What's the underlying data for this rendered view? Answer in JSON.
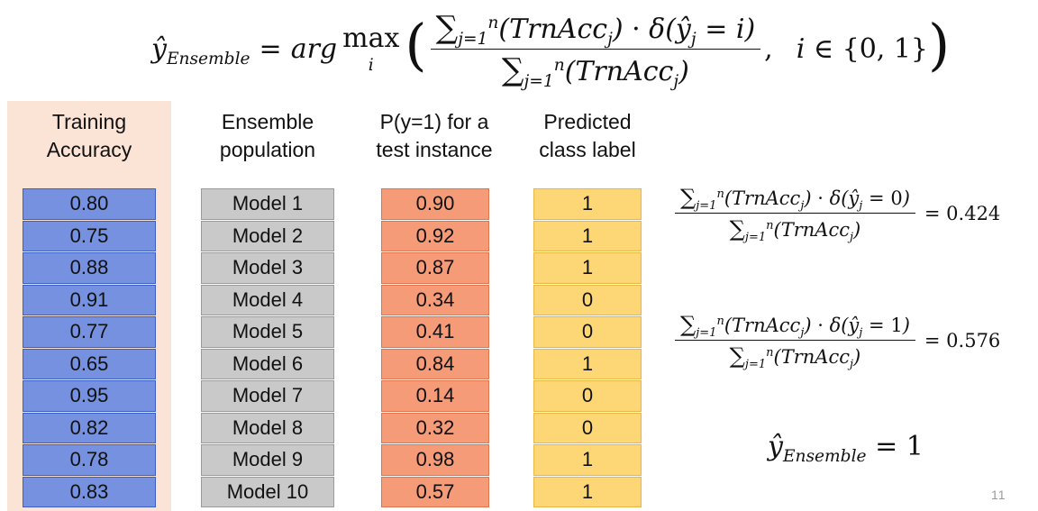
{
  "headers": {
    "accuracy": [
      "Training",
      "Accuracy"
    ],
    "population": [
      "Ensemble",
      "population"
    ],
    "probability": [
      "P(y=1) for a",
      "test instance"
    ],
    "predicted": [
      "Predicted",
      "class label"
    ]
  },
  "rows": [
    {
      "accuracy": "0.80",
      "model": "Model 1",
      "prob": "0.90",
      "pred": "1"
    },
    {
      "accuracy": "0.75",
      "model": "Model 2",
      "prob": "0.92",
      "pred": "1"
    },
    {
      "accuracy": "0.88",
      "model": "Model 3",
      "prob": "0.87",
      "pred": "1"
    },
    {
      "accuracy": "0.91",
      "model": "Model 4",
      "prob": "0.34",
      "pred": "0"
    },
    {
      "accuracy": "0.77",
      "model": "Model 5",
      "prob": "0.41",
      "pred": "0"
    },
    {
      "accuracy": "0.65",
      "model": "Model 6",
      "prob": "0.84",
      "pred": "1"
    },
    {
      "accuracy": "0.95",
      "model": "Model 7",
      "prob": "0.14",
      "pred": "0"
    },
    {
      "accuracy": "0.82",
      "model": "Model 8",
      "prob": "0.32",
      "pred": "0"
    },
    {
      "accuracy": "0.78",
      "model": "Model 9",
      "prob": "0.98",
      "pred": "1"
    },
    {
      "accuracy": "0.83",
      "model": "Model 10",
      "prob": "0.57",
      "pred": "1"
    }
  ],
  "equations": {
    "class0_result": "= 0.424",
    "class1_result": "= 0.576",
    "class0_delta": "0",
    "class1_delta": "1",
    "final_result": "= 1"
  },
  "page_number": "11",
  "colors": {
    "accuracy_fill": "#7591e0",
    "model_fill": "#c9c9c9",
    "prob_fill": "#f59b78",
    "pred_fill": "#fdd775",
    "accuracy_header_bg": "#fbe3d6"
  }
}
